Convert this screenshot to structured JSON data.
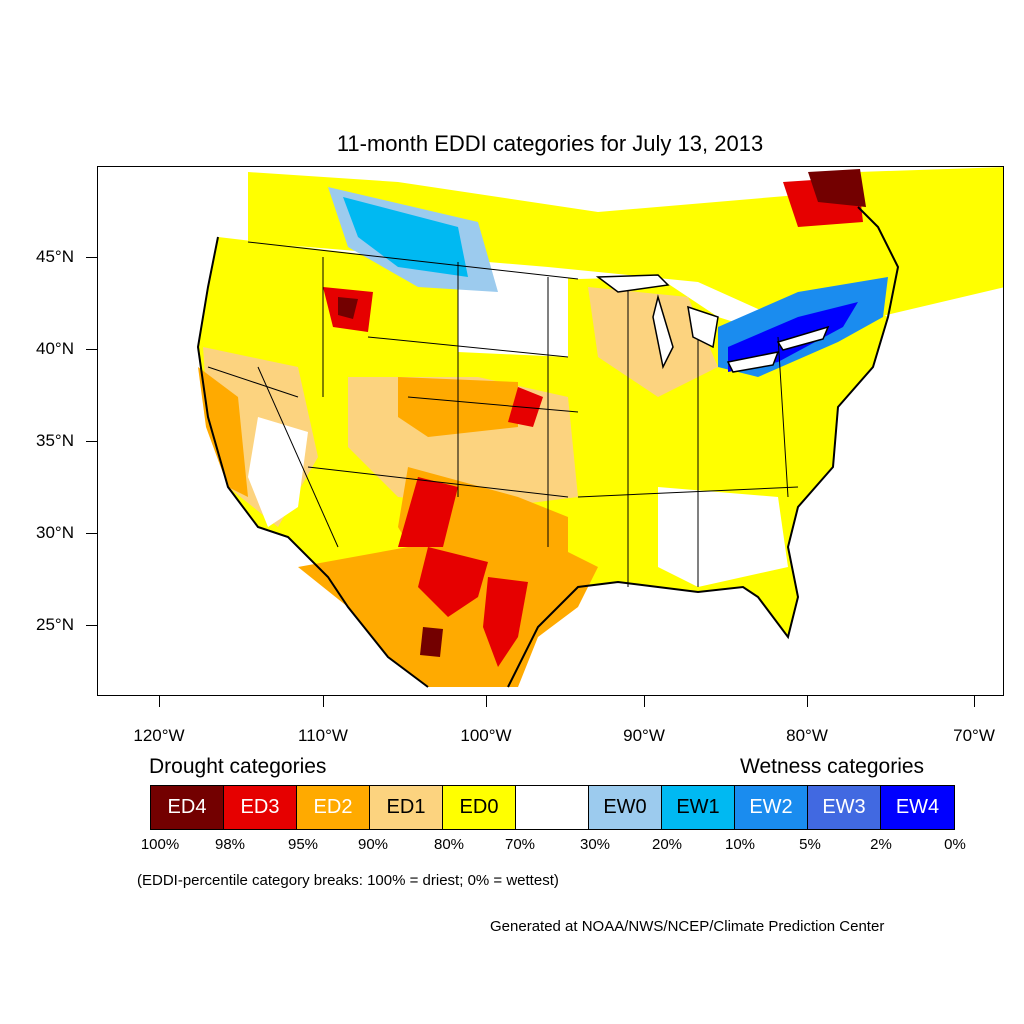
{
  "title": "11-month EDDI categories for July 13, 2013",
  "latitude_labels": [
    "45°N",
    "40°N",
    "35°N",
    "30°N",
    "25°N"
  ],
  "longitude_labels": [
    "120°W",
    "110°W",
    "100°W",
    "90°W",
    "80°W",
    "70°W"
  ],
  "legend": {
    "drought_heading": "Drought categories",
    "wetness_heading": "Wetness categories",
    "categories": [
      {
        "label": "ED4",
        "color": "#730000",
        "text_color": "#ffffff"
      },
      {
        "label": "ED3",
        "color": "#e60000",
        "text_color": "#ffffff"
      },
      {
        "label": "ED2",
        "color": "#ffaa00",
        "text_color": "#ffffff"
      },
      {
        "label": "ED1",
        "color": "#fcd37f",
        "text_color": "#000000"
      },
      {
        "label": "ED0",
        "color": "#ffff00",
        "text_color": "#000000"
      },
      {
        "label": "",
        "color": "#ffffff",
        "text_color": "#000000"
      },
      {
        "label": "EW0",
        "color": "#9ccbee",
        "text_color": "#000000"
      },
      {
        "label": "EW1",
        "color": "#00b9f2",
        "text_color": "#000000"
      },
      {
        "label": "EW2",
        "color": "#1a8cef",
        "text_color": "#ffffff"
      },
      {
        "label": "EW3",
        "color": "#4169e1",
        "text_color": "#ffffff"
      },
      {
        "label": "EW4",
        "color": "#0000ff",
        "text_color": "#ffffff"
      }
    ],
    "percentile_breaks": [
      "100%",
      "98%",
      "95%",
      "90%",
      "80%",
      "70%",
      "30%",
      "20%",
      "10%",
      "5%",
      "2%",
      "0%"
    ]
  },
  "note": "(EDDI-percentile category breaks: 100% = driest; 0% = wettest)",
  "credit": "Generated at NOAA/NWS/NCEP/Climate Prediction Center"
}
